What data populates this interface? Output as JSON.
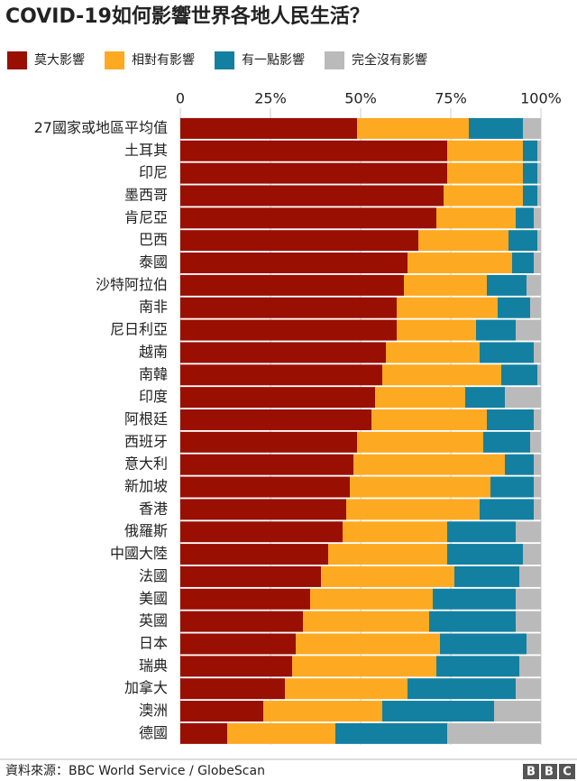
{
  "chart_data": {
    "type": "stacked_bar_horizontal",
    "title": "COVID-19如何影響世界各地人民生活？",
    "categories": [
      "27國家或地區平均值",
      "土耳其",
      "印尼",
      "墨西哥",
      "肯尼亞",
      "巴西",
      "泰國",
      "沙特阿拉伯",
      "南非",
      "尼日利亞",
      "越南",
      "南韓",
      "印度",
      "阿根廷",
      "西班牙",
      "意大利",
      "新加坡",
      "香港",
      "俄羅斯",
      "中國大陸",
      "法國",
      "美國",
      "英國",
      "日本",
      "瑞典",
      "加拿大",
      "澳洲",
      "德國"
    ],
    "series": [
      {
        "name": "莫大影響",
        "color": "#990f02",
        "values": [
          49,
          74,
          74,
          73,
          71,
          66,
          63,
          62,
          60,
          60,
          57,
          56,
          54,
          53,
          49,
          48,
          47,
          46,
          45,
          41,
          39,
          36,
          34,
          32,
          31,
          29,
          23,
          13
        ]
      },
      {
        "name": "相對有影響",
        "color": "#fdaa22",
        "values": [
          31,
          21,
          21,
          22,
          22,
          25,
          29,
          23,
          28,
          22,
          26,
          33,
          25,
          32,
          35,
          42,
          39,
          37,
          29,
          33,
          37,
          34,
          35,
          40,
          40,
          34,
          33,
          30
        ]
      },
      {
        "name": "有一點影響",
        "color": "#1380a1",
        "values": [
          15,
          4,
          4,
          4,
          5,
          8,
          6,
          11,
          9,
          11,
          15,
          10,
          11,
          13,
          13,
          8,
          12,
          15,
          19,
          21,
          18,
          23,
          24,
          24,
          23,
          30,
          31,
          31
        ]
      },
      {
        "name": "完全沒有影響",
        "color": "#bababa",
        "values": [
          5,
          1,
          1,
          1,
          2,
          1,
          2,
          4,
          3,
          7,
          2,
          1,
          10,
          2,
          3,
          2,
          2,
          2,
          7,
          5,
          6,
          7,
          7,
          4,
          6,
          7,
          13,
          26
        ]
      }
    ],
    "xlim": [
      0,
      100
    ],
    "xticks": [
      0,
      {
        "value": 25,
        "label": "25%"
      },
      {
        "value": 50,
        "label": "50%"
      },
      {
        "value": 75,
        "label": "75%"
      },
      {
        "value": 100,
        "label": "100%"
      }
    ],
    "grid": true,
    "source": "資料來源：BBC World Service / GlobeScan",
    "logo": [
      "B",
      "B",
      "C"
    ]
  }
}
